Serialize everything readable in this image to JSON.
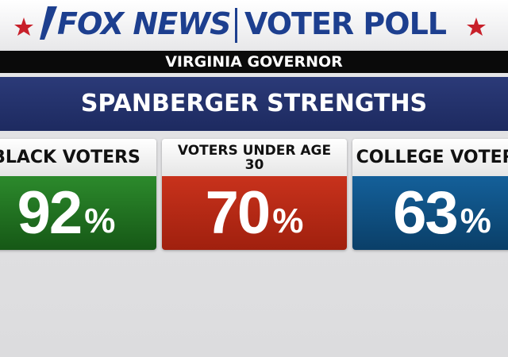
{
  "header": {
    "brand": "FOX NEWS",
    "title": "VOTER POLL"
  },
  "subtitle": "VIRGINIA GOVERNOR",
  "banner": "SPANBERGER STRENGTHS",
  "cards": [
    {
      "label": "BLACK VOTERS",
      "value": 92,
      "unit": "%"
    },
    {
      "label": "VOTERS UNDER AGE 30",
      "value": 70,
      "unit": "%"
    },
    {
      "label": "COLLEGE VOTERS",
      "value": 63,
      "unit": "%"
    }
  ]
}
